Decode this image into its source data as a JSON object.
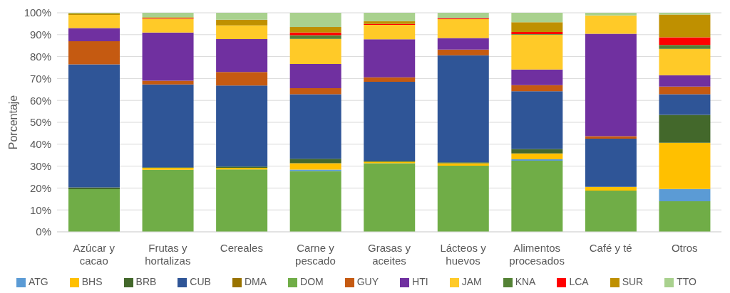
{
  "chart_data": {
    "type": "bar",
    "stacked": true,
    "ylabel": "Porcentaje",
    "categories": [
      "Azúcar y cacao",
      "Frutas y hortalizas",
      "Cereales",
      "Carne y pescado",
      "Grasas y aceites",
      "Lácteos y huevos",
      "Alimentos procesados",
      "Café y té",
      "Otros"
    ],
    "series": [
      {
        "name": "DOM",
        "color": "#70ad47",
        "values": [
          19.5,
          28.3,
          28.5,
          27.8,
          31.3,
          30.2,
          32.5,
          18.8,
          14
        ]
      },
      {
        "name": "ATG",
        "color": "#5b9bd5",
        "values": [
          0,
          0,
          0,
          0.6,
          0,
          0,
          0.6,
          0,
          5.6
        ]
      },
      {
        "name": "BHS",
        "color": "#ffc000",
        "values": [
          0,
          0.9,
          0.7,
          2.9,
          0.7,
          1.1,
          2.7,
          1.7,
          21.1
        ]
      },
      {
        "name": "BRB",
        "color": "#43682b",
        "values": [
          0.8,
          0.3,
          0.6,
          2.1,
          0.5,
          0.4,
          2,
          0,
          12.7
        ]
      },
      {
        "name": "CUB",
        "color": "#2f5597",
        "values": [
          56.2,
          37.8,
          37,
          29.4,
          36,
          48.9,
          26.4,
          22,
          9.4
        ]
      },
      {
        "name": "DMA",
        "color": "#997300",
        "values": [
          0,
          0,
          0,
          0,
          0,
          0,
          0,
          0,
          0
        ]
      },
      {
        "name": "GUY",
        "color": "#c55a11",
        "values": [
          10.5,
          1.7,
          6.2,
          2.8,
          2,
          2.6,
          2.8,
          1.2,
          3.5
        ]
      },
      {
        "name": "HTI",
        "color": "#7030a0",
        "values": [
          6,
          22,
          15,
          11,
          17.4,
          5.3,
          7.1,
          46.7,
          5.2
        ]
      },
      {
        "name": "JAM",
        "color": "#ffca28",
        "values": [
          6,
          6.2,
          6.2,
          11.5,
          6.6,
          8.6,
          15.9,
          8.4,
          12
        ]
      },
      {
        "name": "KNA",
        "color": "#548235",
        "values": [
          0,
          0,
          0,
          1.7,
          0,
          0,
          0.3,
          0,
          1.8
        ]
      },
      {
        "name": "LCA",
        "color": "#ff0000",
        "values": [
          0,
          0.4,
          0,
          1.2,
          0.4,
          0.5,
          0.9,
          0,
          3.5
        ]
      },
      {
        "name": "SUR",
        "color": "#bf9000",
        "values": [
          0.7,
          0.4,
          2.6,
          2.5,
          1.3,
          0,
          4.5,
          0,
          10.4
        ]
      },
      {
        "name": "TTO",
        "color": "#a9d18e",
        "values": [
          0.3,
          2,
          3.2,
          6.5,
          3.8,
          2.4,
          4.3,
          1.2,
          0.8
        ]
      }
    ],
    "ylim": [
      0,
      100
    ],
    "yticks": [
      {
        "value": 0,
        "label": "0%"
      },
      {
        "value": 10,
        "label": "10%"
      },
      {
        "value": 20,
        "label": "20%"
      },
      {
        "value": 30,
        "label": "30%"
      },
      {
        "value": 40,
        "label": "40%"
      },
      {
        "value": 50,
        "label": "50%"
      },
      {
        "value": 60,
        "label": "60%"
      },
      {
        "value": 70,
        "label": "70%"
      },
      {
        "value": 80,
        "label": "80%"
      },
      {
        "value": 90,
        "label": "90%"
      },
      {
        "value": 100,
        "label": "100%"
      }
    ],
    "grid": "y",
    "legend": "bottom"
  }
}
